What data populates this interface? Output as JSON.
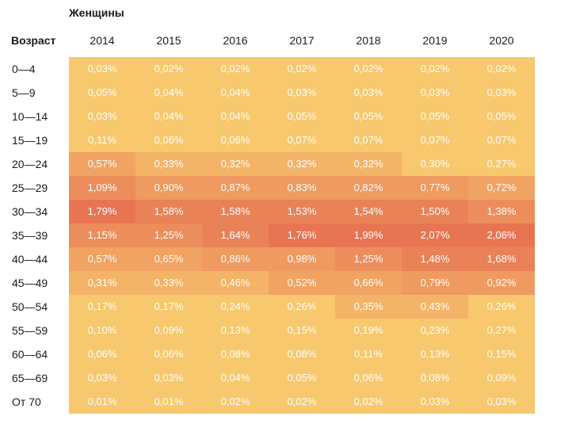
{
  "chart_data": {
    "type": "heatmap",
    "title": "Женщины",
    "row_header": "Возраст",
    "columns": [
      "2014",
      "2015",
      "2016",
      "2017",
      "2018",
      "2019",
      "2020"
    ],
    "rows": [
      "0—4",
      "5—9",
      "10—14",
      "15—19",
      "20—24",
      "25—29",
      "30—34",
      "35—39",
      "40—44",
      "45—49",
      "50—54",
      "55—59",
      "60—64",
      "65—69",
      "От 70"
    ],
    "values": [
      [
        0.03,
        0.02,
        0.02,
        0.02,
        0.02,
        0.02,
        0.02
      ],
      [
        0.05,
        0.04,
        0.04,
        0.03,
        0.03,
        0.03,
        0.03
      ],
      [
        0.03,
        0.04,
        0.04,
        0.05,
        0.05,
        0.05,
        0.05
      ],
      [
        0.11,
        0.06,
        0.06,
        0.07,
        0.07,
        0.07,
        0.07
      ],
      [
        0.57,
        0.33,
        0.32,
        0.32,
        0.32,
        0.3,
        0.27
      ],
      [
        1.09,
        0.9,
        0.87,
        0.83,
        0.82,
        0.77,
        0.72
      ],
      [
        1.79,
        1.58,
        1.58,
        1.53,
        1.54,
        1.5,
        1.38
      ],
      [
        1.15,
        1.25,
        1.64,
        1.76,
        1.99,
        2.07,
        2.06
      ],
      [
        0.57,
        0.65,
        0.86,
        0.98,
        1.25,
        1.48,
        1.68
      ],
      [
        0.31,
        0.33,
        0.46,
        0.52,
        0.66,
        0.79,
        0.92
      ],
      [
        0.17,
        0.17,
        0.24,
        0.26,
        0.35,
        0.43,
        0.26
      ],
      [
        0.1,
        0.09,
        0.13,
        0.15,
        0.19,
        0.23,
        0.27
      ],
      [
        0.06,
        0.06,
        0.08,
        0.08,
        0.11,
        0.13,
        0.15
      ],
      [
        0.03,
        0.03,
        0.04,
        0.05,
        0.06,
        0.08,
        0.09
      ],
      [
        0.01,
        0.01,
        0.02,
        0.02,
        0.02,
        0.03,
        0.03
      ]
    ],
    "labels": [
      [
        "0,03%",
        "0,02%",
        "0,02%",
        "0,02%",
        "0,02%",
        "0,02%",
        "0,02%"
      ],
      [
        "0,05%",
        "0,04%",
        "0,04%",
        "0,03%",
        "0,03%",
        "0,03%",
        "0,03%"
      ],
      [
        "0,03%",
        "0,04%",
        "0,04%",
        "0,05%",
        "0,05%",
        "0,05%",
        "0,05%"
      ],
      [
        "0,11%",
        "0,06%",
        "0,06%",
        "0,07%",
        "0,07%",
        "0,07%",
        "0,07%"
      ],
      [
        "0,57%",
        "0,33%",
        "0,32%",
        "0,32%",
        "0,32%",
        "0,30%",
        "0,27%"
      ],
      [
        "1,09%",
        "0,90%",
        "0,87%",
        "0,83%",
        "0,82%",
        "0,77%",
        "0,72%"
      ],
      [
        "1,79%",
        "1,58%",
        "1,58%",
        "1,53%",
        "1,54%",
        "1,50%",
        "1,38%"
      ],
      [
        "1,15%",
        "1,25%",
        "1,64%",
        "1,76%",
        "1,99%",
        "2,07%",
        "2,06%"
      ],
      [
        "0,57%",
        "0,65%",
        "0,86%",
        "0,98%",
        "1,25%",
        "1,48%",
        "1,68%"
      ],
      [
        "0,31%",
        "0,33%",
        "0,46%",
        "0,52%",
        "0,66%",
        "0,79%",
        "0,92%"
      ],
      [
        "0,17%",
        "0,17%",
        "0,24%",
        "0,26%",
        "0,35%",
        "0,43%",
        "0,26%"
      ],
      [
        "0,10%",
        "0,09%",
        "0,13%",
        "0,15%",
        "0,19%",
        "0,23%",
        "0,27%"
      ],
      [
        "0,06%",
        "0,06%",
        "0,08%",
        "0,08%",
        "0,11%",
        "0,13%",
        "0,15%"
      ],
      [
        "0,03%",
        "0,03%",
        "0,04%",
        "0,05%",
        "0,06%",
        "0,08%",
        "0,09%"
      ],
      [
        "0,01%",
        "0,01%",
        "0,02%",
        "0,02%",
        "0,02%",
        "0,03%",
        "0,03%"
      ]
    ],
    "color_scale": [
      {
        "max": 0.3,
        "color": "#f7c86d"
      },
      {
        "max": 0.5,
        "color": "#f4b468"
      },
      {
        "max": 0.75,
        "color": "#f1a363"
      },
      {
        "max": 1.0,
        "color": "#ee9a60"
      },
      {
        "max": 1.4,
        "color": "#ec8e5c"
      },
      {
        "max": 1.7,
        "color": "#e98257"
      },
      {
        "max": 9.99,
        "color": "#e77552"
      }
    ]
  }
}
